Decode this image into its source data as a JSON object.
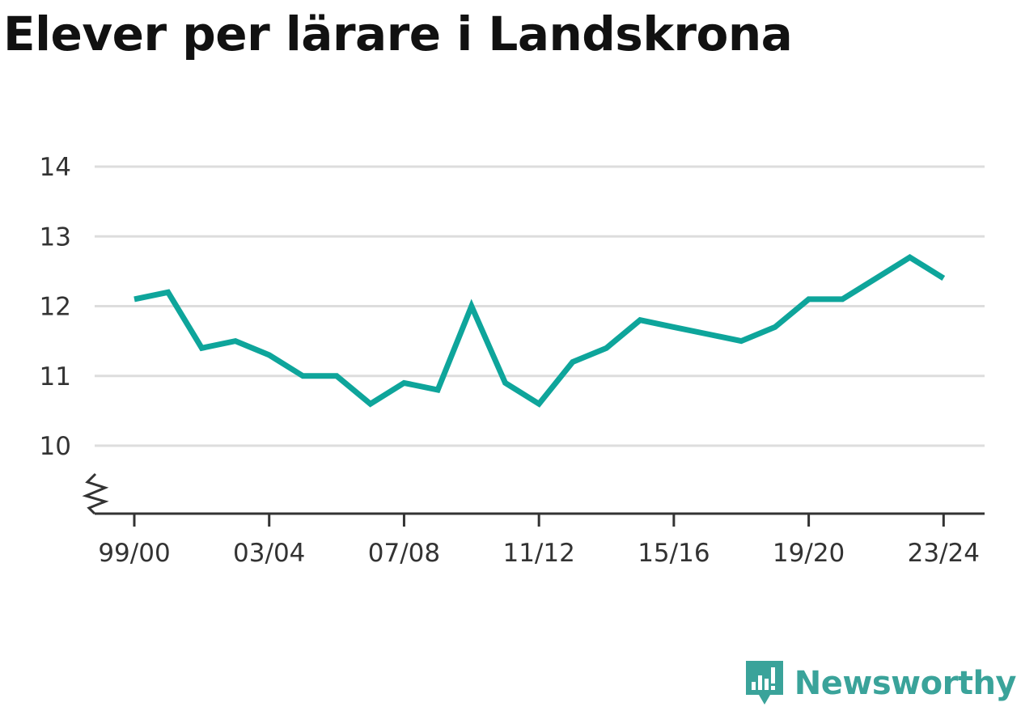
{
  "title": "Elever per lärare i Landskrona",
  "brand": {
    "name": "Newsworthy"
  },
  "colors": {
    "line": "#0ea59b",
    "grid": "#dddddd",
    "axis": "#333333",
    "brand": "#3aa39a"
  },
  "chart_data": {
    "type": "line",
    "title": "Elever per lärare i Landskrona",
    "xlabel": "",
    "ylabel": "",
    "ylim": [
      9,
      14
    ],
    "y_ticks": [
      10,
      11,
      12,
      13,
      14
    ],
    "x_tick_labels": [
      "99/00",
      "03/04",
      "07/08",
      "11/12",
      "15/16",
      "19/20",
      "23/24"
    ],
    "grid": true,
    "axis_break": true,
    "x": [
      "99/00",
      "00/01",
      "01/02",
      "02/03",
      "03/04",
      "04/05",
      "05/06",
      "06/07",
      "07/08",
      "08/09",
      "09/10",
      "10/11",
      "11/12",
      "12/13",
      "13/14",
      "14/15",
      "15/16",
      "16/17",
      "17/18",
      "18/19",
      "19/20",
      "20/21",
      "21/22",
      "22/23",
      "23/24"
    ],
    "series": [
      {
        "values": [
          12.1,
          12.2,
          11.4,
          11.5,
          11.3,
          11.0,
          11.0,
          10.6,
          10.9,
          10.8,
          12.0,
          10.9,
          10.6,
          11.2,
          11.4,
          11.8,
          11.7,
          11.6,
          11.5,
          11.7,
          12.1,
          12.1,
          12.4,
          12.7,
          12.4
        ]
      }
    ]
  }
}
